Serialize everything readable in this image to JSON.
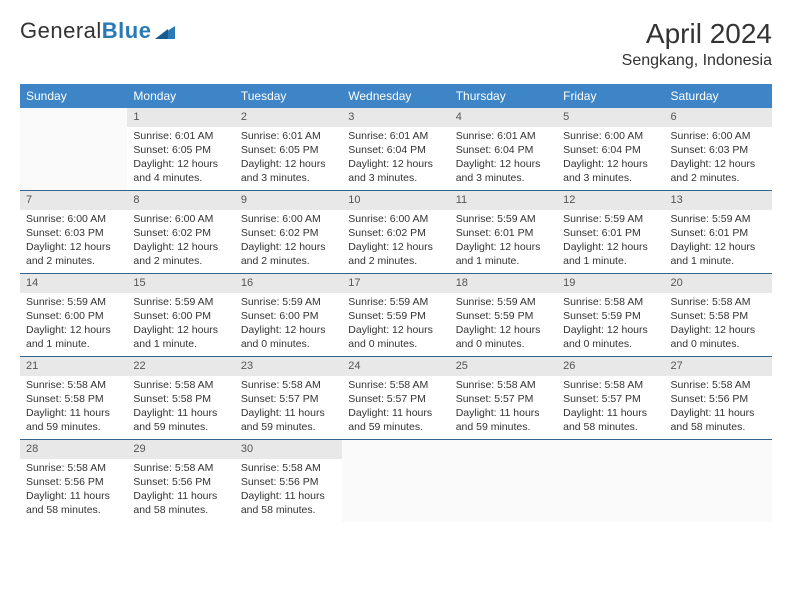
{
  "logo": {
    "text1": "General",
    "text2": "Blue"
  },
  "title": "April 2024",
  "location": "Sengkang, Indonesia",
  "colors": {
    "header_bg": "#3d85c6",
    "header_text": "#ffffff",
    "daynum_bg": "#e8e8e8",
    "border": "#35648f",
    "logo_blue": "#2a7ab8"
  },
  "weekdays": [
    "Sunday",
    "Monday",
    "Tuesday",
    "Wednesday",
    "Thursday",
    "Friday",
    "Saturday"
  ],
  "weeks": [
    [
      null,
      {
        "num": "1",
        "sunrise": "6:01 AM",
        "sunset": "6:05 PM",
        "daylight": "12 hours and 4 minutes."
      },
      {
        "num": "2",
        "sunrise": "6:01 AM",
        "sunset": "6:05 PM",
        "daylight": "12 hours and 3 minutes."
      },
      {
        "num": "3",
        "sunrise": "6:01 AM",
        "sunset": "6:04 PM",
        "daylight": "12 hours and 3 minutes."
      },
      {
        "num": "4",
        "sunrise": "6:01 AM",
        "sunset": "6:04 PM",
        "daylight": "12 hours and 3 minutes."
      },
      {
        "num": "5",
        "sunrise": "6:00 AM",
        "sunset": "6:04 PM",
        "daylight": "12 hours and 3 minutes."
      },
      {
        "num": "6",
        "sunrise": "6:00 AM",
        "sunset": "6:03 PM",
        "daylight": "12 hours and 2 minutes."
      }
    ],
    [
      {
        "num": "7",
        "sunrise": "6:00 AM",
        "sunset": "6:03 PM",
        "daylight": "12 hours and 2 minutes."
      },
      {
        "num": "8",
        "sunrise": "6:00 AM",
        "sunset": "6:02 PM",
        "daylight": "12 hours and 2 minutes."
      },
      {
        "num": "9",
        "sunrise": "6:00 AM",
        "sunset": "6:02 PM",
        "daylight": "12 hours and 2 minutes."
      },
      {
        "num": "10",
        "sunrise": "6:00 AM",
        "sunset": "6:02 PM",
        "daylight": "12 hours and 2 minutes."
      },
      {
        "num": "11",
        "sunrise": "5:59 AM",
        "sunset": "6:01 PM",
        "daylight": "12 hours and 1 minute."
      },
      {
        "num": "12",
        "sunrise": "5:59 AM",
        "sunset": "6:01 PM",
        "daylight": "12 hours and 1 minute."
      },
      {
        "num": "13",
        "sunrise": "5:59 AM",
        "sunset": "6:01 PM",
        "daylight": "12 hours and 1 minute."
      }
    ],
    [
      {
        "num": "14",
        "sunrise": "5:59 AM",
        "sunset": "6:00 PM",
        "daylight": "12 hours and 1 minute."
      },
      {
        "num": "15",
        "sunrise": "5:59 AM",
        "sunset": "6:00 PM",
        "daylight": "12 hours and 1 minute."
      },
      {
        "num": "16",
        "sunrise": "5:59 AM",
        "sunset": "6:00 PM",
        "daylight": "12 hours and 0 minutes."
      },
      {
        "num": "17",
        "sunrise": "5:59 AM",
        "sunset": "5:59 PM",
        "daylight": "12 hours and 0 minutes."
      },
      {
        "num": "18",
        "sunrise": "5:59 AM",
        "sunset": "5:59 PM",
        "daylight": "12 hours and 0 minutes."
      },
      {
        "num": "19",
        "sunrise": "5:58 AM",
        "sunset": "5:59 PM",
        "daylight": "12 hours and 0 minutes."
      },
      {
        "num": "20",
        "sunrise": "5:58 AM",
        "sunset": "5:58 PM",
        "daylight": "12 hours and 0 minutes."
      }
    ],
    [
      {
        "num": "21",
        "sunrise": "5:58 AM",
        "sunset": "5:58 PM",
        "daylight": "11 hours and 59 minutes."
      },
      {
        "num": "22",
        "sunrise": "5:58 AM",
        "sunset": "5:58 PM",
        "daylight": "11 hours and 59 minutes."
      },
      {
        "num": "23",
        "sunrise": "5:58 AM",
        "sunset": "5:57 PM",
        "daylight": "11 hours and 59 minutes."
      },
      {
        "num": "24",
        "sunrise": "5:58 AM",
        "sunset": "5:57 PM",
        "daylight": "11 hours and 59 minutes."
      },
      {
        "num": "25",
        "sunrise": "5:58 AM",
        "sunset": "5:57 PM",
        "daylight": "11 hours and 59 minutes."
      },
      {
        "num": "26",
        "sunrise": "5:58 AM",
        "sunset": "5:57 PM",
        "daylight": "11 hours and 58 minutes."
      },
      {
        "num": "27",
        "sunrise": "5:58 AM",
        "sunset": "5:56 PM",
        "daylight": "11 hours and 58 minutes."
      }
    ],
    [
      {
        "num": "28",
        "sunrise": "5:58 AM",
        "sunset": "5:56 PM",
        "daylight": "11 hours and 58 minutes."
      },
      {
        "num": "29",
        "sunrise": "5:58 AM",
        "sunset": "5:56 PM",
        "daylight": "11 hours and 58 minutes."
      },
      {
        "num": "30",
        "sunrise": "5:58 AM",
        "sunset": "5:56 PM",
        "daylight": "11 hours and 58 minutes."
      },
      null,
      null,
      null,
      null
    ]
  ],
  "labels": {
    "sunrise": "Sunrise:",
    "sunset": "Sunset:",
    "daylight": "Daylight:"
  }
}
